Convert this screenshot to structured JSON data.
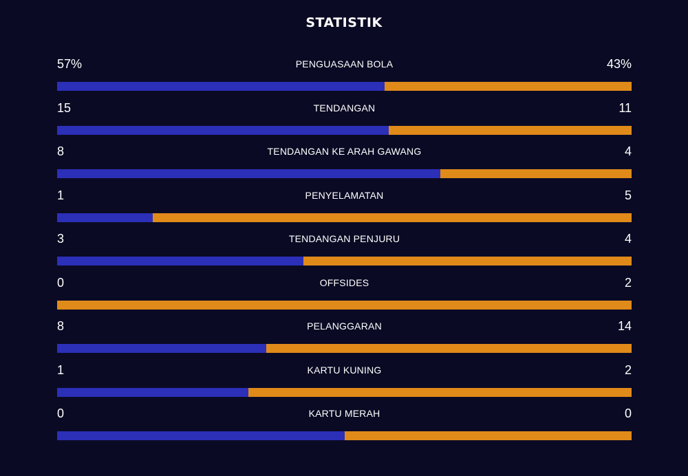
{
  "title": "STATISTIK",
  "colors": {
    "background": "#0a0a24",
    "home": "#2c2fb8",
    "away": "#e08a1a",
    "text": "#ffffff"
  },
  "stats": [
    {
      "label": "PENGUASAAN BOLA",
      "home": "57%",
      "away": "43%",
      "home_share": 0.57
    },
    {
      "label": "TENDANGAN",
      "home": "15",
      "away": "11",
      "home_share": 0.577
    },
    {
      "label": "TENDANGAN KE ARAH GAWANG",
      "home": "8",
      "away": "4",
      "home_share": 0.667
    },
    {
      "label": "PENYELAMATAN",
      "home": "1",
      "away": "5",
      "home_share": 0.167
    },
    {
      "label": "TENDANGAN PENJURU",
      "home": "3",
      "away": "4",
      "home_share": 0.429
    },
    {
      "label": "OFFSIDES",
      "home": "0",
      "away": "2",
      "home_share": 0.0
    },
    {
      "label": "PELANGGARAN",
      "home": "8",
      "away": "14",
      "home_share": 0.364
    },
    {
      "label": "KARTU KUNING",
      "home": "1",
      "away": "2",
      "home_share": 0.333
    },
    {
      "label": "KARTU MERAH",
      "home": "0",
      "away": "0",
      "home_share": 0.5
    }
  ]
}
